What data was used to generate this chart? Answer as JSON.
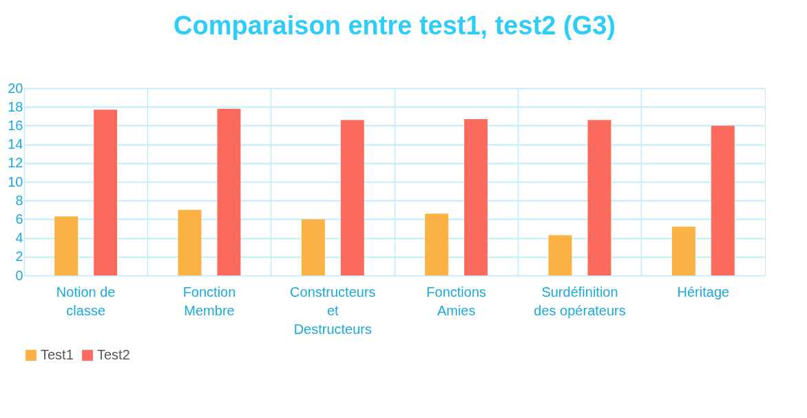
{
  "chart_data": {
    "type": "bar",
    "title": "Comparaison entre test1, test2 (G3)",
    "categories": [
      "Notion de classe",
      "Fonction Membre",
      "Constructeurs et Destructeurs",
      "Fonctions Amies",
      "Surdéfinition des opérateurs",
      "Héritage"
    ],
    "series": [
      {
        "name": "Test1",
        "color": "#fbb144",
        "values": [
          6.3,
          7.0,
          6.0,
          6.6,
          4.3,
          5.2
        ]
      },
      {
        "name": "Test2",
        "color": "#fd6b5e",
        "values": [
          17.7,
          17.8,
          16.6,
          16.7,
          16.6,
          16.0
        ]
      }
    ],
    "ylim": [
      0,
      20
    ],
    "yticks": [
      0,
      2,
      4,
      6,
      8,
      10,
      12,
      14,
      16,
      18,
      20
    ],
    "grid": true,
    "legend": "bottom"
  }
}
